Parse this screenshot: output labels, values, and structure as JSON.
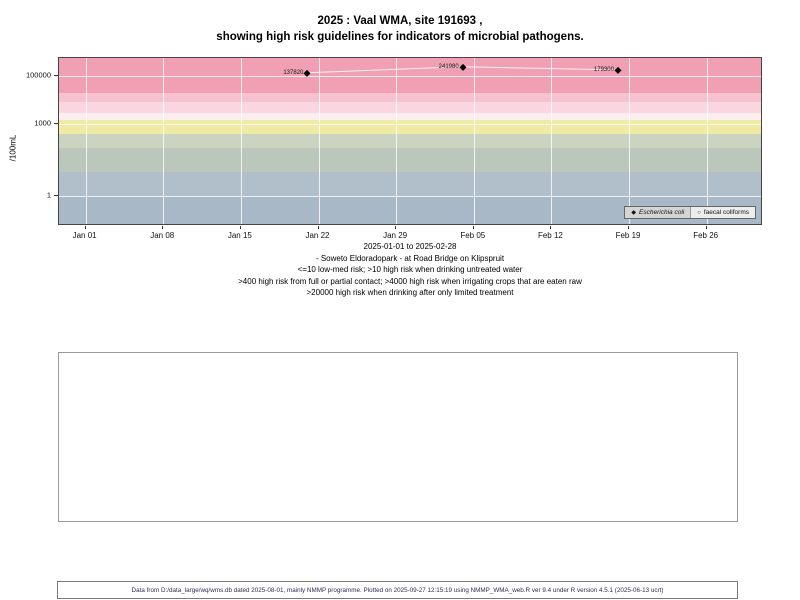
{
  "title": {
    "line1": "2025 : Vaal WMA, site 191693 ,",
    "line2": "showing high risk guidelines for indicators of microbial pathogens."
  },
  "chart_data": {
    "type": "scatter",
    "title": "2025 : Vaal WMA, site 191693 ,",
    "subtitle": "showing high risk guidelines for indicators of microbial pathogens.",
    "ylabel": "/100mL",
    "xlabel": "2025-01-01 to 2025-02-28",
    "y_scale": "log10",
    "grid": true,
    "legend_position": "bottom-right",
    "y_log_domain": [
      -1.15,
      5.75
    ],
    "x_domain_days": [
      -2.4,
      60.9
    ],
    "x_ticks": [
      {
        "day": 0,
        "label": "Jan 01"
      },
      {
        "day": 7,
        "label": "Jan 08"
      },
      {
        "day": 14,
        "label": "Jan 15"
      },
      {
        "day": 21,
        "label": "Jan 22"
      },
      {
        "day": 28,
        "label": "Jan 29"
      },
      {
        "day": 35,
        "label": "Feb 05"
      },
      {
        "day": 42,
        "label": "Feb 12"
      },
      {
        "day": 49,
        "label": "Feb 19"
      },
      {
        "day": 56,
        "label": "Feb 26"
      }
    ],
    "y_ticks": [
      {
        "value": 1,
        "label": "1"
      },
      {
        "value": 1000,
        "label": "1000"
      },
      {
        "value": 100000,
        "label": "100000"
      }
    ],
    "risk_bands": [
      {
        "from": 20000,
        "to": null,
        "color": "#f1a0b3"
      },
      {
        "from": 8000,
        "to": 20000,
        "color": "#f7c2d0"
      },
      {
        "from": 3000,
        "to": 8000,
        "color": "#fad7e0"
      },
      {
        "from": 1500,
        "to": 3000,
        "color": "#fceef0"
      },
      {
        "from": 400,
        "to": 1500,
        "color": "#f0eba4"
      },
      {
        "from": 100,
        "to": 400,
        "color": "#cbd4c1"
      },
      {
        "from": 10,
        "to": 100,
        "color": "#bac7ba"
      },
      {
        "from": 1,
        "to": 10,
        "color": "#b1bfcb"
      },
      {
        "from": null,
        "to": 1,
        "color": "#a8b8c6"
      }
    ],
    "line_color": "#f2f2f2",
    "series": [
      {
        "name": "Escherichia coli",
        "marker": "diamond",
        "italic": true,
        "color": "#000000",
        "points": [
          {
            "day": 20,
            "value": 137820,
            "label": "137820"
          },
          {
            "day": 34,
            "value": 241980,
            "label": "241980"
          },
          {
            "day": 48,
            "value": 179300,
            "label": "179300"
          }
        ]
      },
      {
        "name": "faecal coliforms",
        "marker": "circle",
        "italic": false,
        "color": "#000000",
        "points": []
      }
    ]
  },
  "captions": [
    "2025-01-01 to 2025-02-28",
    "- Soweto Eldoradopark - at Road Bridge on Klipspruit",
    "<=10 low-med risk; >10 high risk when drinking untreated water",
    ">400 high risk from full or partial contact; >4000 high risk when irrigating crops that are eaten raw",
    ">20000 high risk when drinking after only limited treatment"
  ],
  "footer": {
    "text": "Data from D:/data_large/wq/wms.db dated 2025-08-01, mainly NMMP programme. Plotted on 2025-09-27 12:15:19 using NMMP_WMA_web.R ver 9.4 under R version 4.5.1 (2025-06-13 ucrt)"
  }
}
